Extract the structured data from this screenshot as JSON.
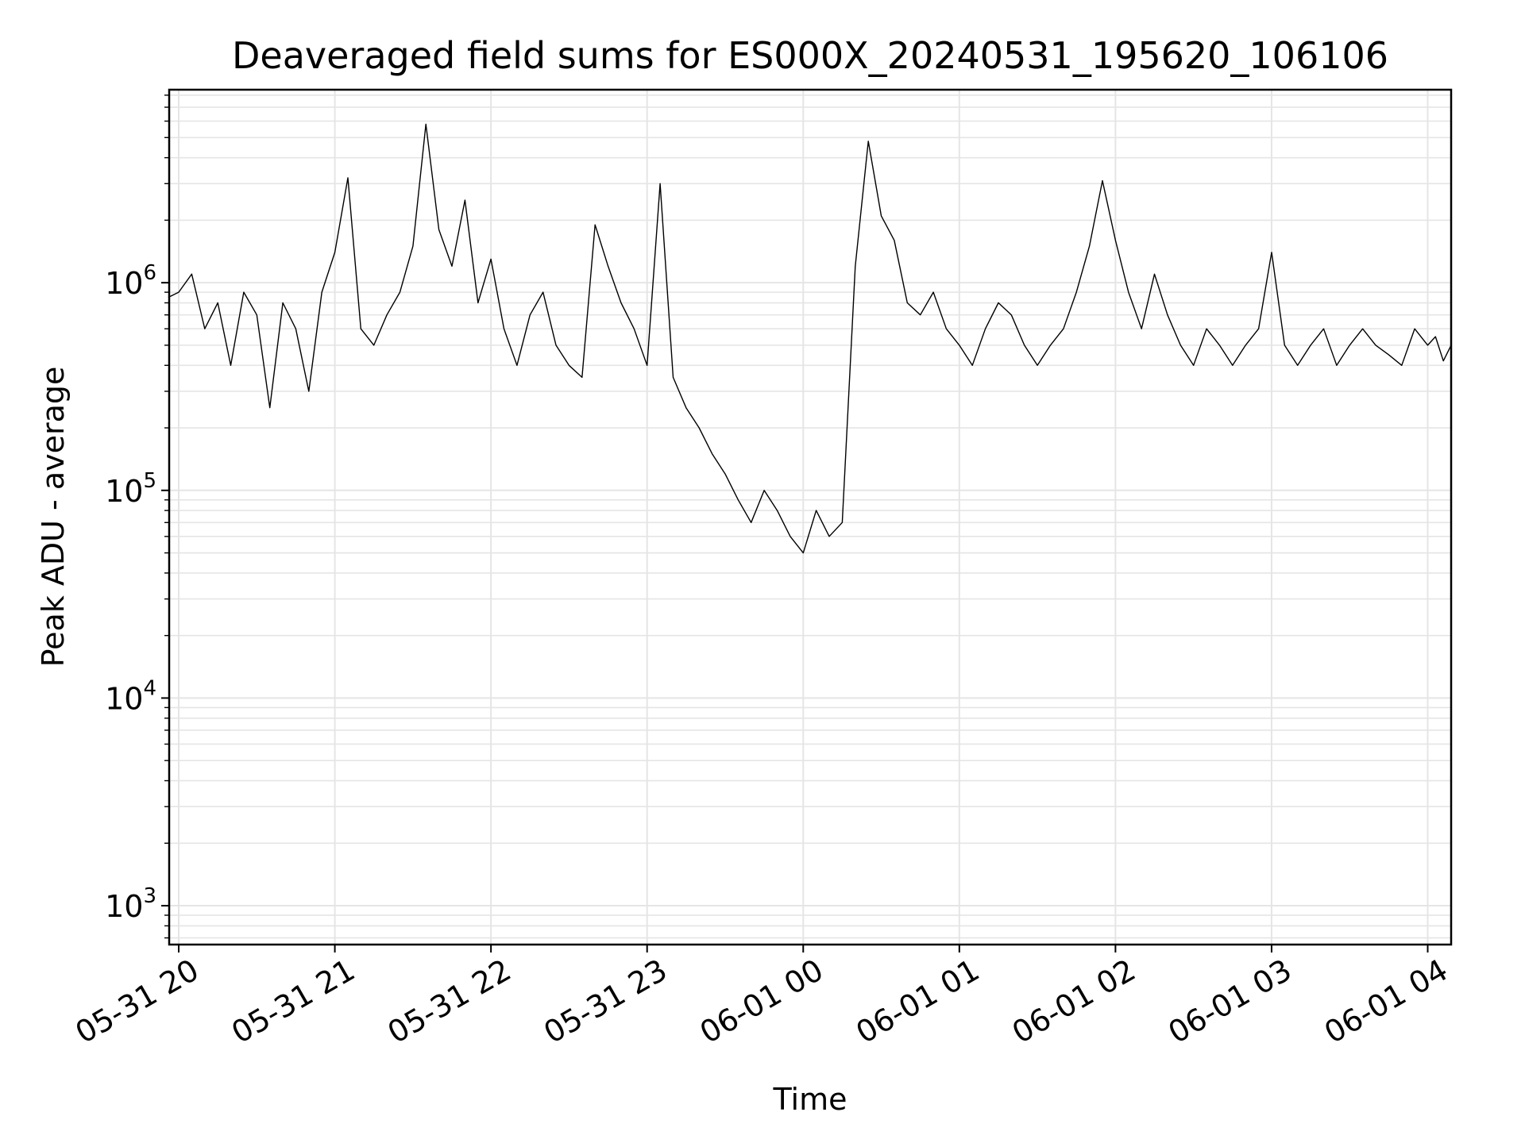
{
  "chart_data": {
    "type": "line",
    "title": "Deaveraged field sums for ES000X_20240531_195620_106106",
    "xlabel": "Time",
    "ylabel": "Peak ADU - average",
    "yscale": "log",
    "ylim": [
      650,
      8500000
    ],
    "xlim": [
      "2024-05-31 19:56:20",
      "2024-06-01 04:09:00"
    ],
    "grid": true,
    "line_color": "#000000",
    "x_ticks": [
      {
        "label": "05-31 20",
        "time": "2024-05-31 20:00"
      },
      {
        "label": "05-31 21",
        "time": "2024-05-31 21:00"
      },
      {
        "label": "05-31 22",
        "time": "2024-05-31 22:00"
      },
      {
        "label": "05-31 23",
        "time": "2024-05-31 23:00"
      },
      {
        "label": "06-01 00",
        "time": "2024-06-01 00:00"
      },
      {
        "label": "06-01 01",
        "time": "2024-06-01 01:00"
      },
      {
        "label": "06-01 02",
        "time": "2024-06-01 02:00"
      },
      {
        "label": "06-01 03",
        "time": "2024-06-01 03:00"
      },
      {
        "label": "06-01 04",
        "time": "2024-06-01 04:00"
      }
    ],
    "y_ticks": [
      {
        "base": "10",
        "exp": "3",
        "value": 1000
      },
      {
        "base": "10",
        "exp": "4",
        "value": 10000
      },
      {
        "base": "10",
        "exp": "5",
        "value": 100000
      },
      {
        "base": "10",
        "exp": "6",
        "value": 1000000
      }
    ],
    "series": [
      {
        "x": [
          "2024-05-31 19:56",
          "2024-05-31 20:00",
          "2024-05-31 20:05",
          "2024-05-31 20:10",
          "2024-05-31 20:15",
          "2024-05-31 20:20",
          "2024-05-31 20:25",
          "2024-05-31 20:30",
          "2024-05-31 20:35",
          "2024-05-31 20:40",
          "2024-05-31 20:45",
          "2024-05-31 20:50",
          "2024-05-31 20:55",
          "2024-05-31 21:00",
          "2024-05-31 21:05",
          "2024-05-31 21:10",
          "2024-05-31 21:15",
          "2024-05-31 21:20",
          "2024-05-31 21:25",
          "2024-05-31 21:30",
          "2024-05-31 21:35",
          "2024-05-31 21:40",
          "2024-05-31 21:45",
          "2024-05-31 21:50",
          "2024-05-31 21:55",
          "2024-05-31 22:00",
          "2024-05-31 22:05",
          "2024-05-31 22:10",
          "2024-05-31 22:15",
          "2024-05-31 22:20",
          "2024-05-31 22:25",
          "2024-05-31 22:30",
          "2024-05-31 22:35",
          "2024-05-31 22:40",
          "2024-05-31 22:45",
          "2024-05-31 22:50",
          "2024-05-31 22:55",
          "2024-05-31 23:00",
          "2024-05-31 23:05",
          "2024-05-31 23:10",
          "2024-05-31 23:15",
          "2024-05-31 23:20",
          "2024-05-31 23:25",
          "2024-05-31 23:30",
          "2024-05-31 23:35",
          "2024-05-31 23:40",
          "2024-05-31 23:45",
          "2024-05-31 23:50",
          "2024-05-31 23:55",
          "2024-06-01 00:00",
          "2024-06-01 00:05",
          "2024-06-01 00:10",
          "2024-06-01 00:15",
          "2024-06-01 00:20",
          "2024-06-01 00:25",
          "2024-06-01 00:30",
          "2024-06-01 00:35",
          "2024-06-01 00:40",
          "2024-06-01 00:45",
          "2024-06-01 00:50",
          "2024-06-01 00:55",
          "2024-06-01 01:00",
          "2024-06-01 01:05",
          "2024-06-01 01:10",
          "2024-06-01 01:15",
          "2024-06-01 01:20",
          "2024-06-01 01:25",
          "2024-06-01 01:30",
          "2024-06-01 01:35",
          "2024-06-01 01:40",
          "2024-06-01 01:45",
          "2024-06-01 01:50",
          "2024-06-01 01:55",
          "2024-06-01 02:00",
          "2024-06-01 02:05",
          "2024-06-01 02:10",
          "2024-06-01 02:15",
          "2024-06-01 02:20",
          "2024-06-01 02:25",
          "2024-06-01 02:30",
          "2024-06-01 02:35",
          "2024-06-01 02:40",
          "2024-06-01 02:45",
          "2024-06-01 02:50",
          "2024-06-01 02:55",
          "2024-06-01 03:00",
          "2024-06-01 03:05",
          "2024-06-01 03:10",
          "2024-06-01 03:15",
          "2024-06-01 03:20",
          "2024-06-01 03:25",
          "2024-06-01 03:30",
          "2024-06-01 03:35",
          "2024-06-01 03:40",
          "2024-06-01 03:45",
          "2024-06-01 03:50",
          "2024-06-01 03:55",
          "2024-06-01 04:00",
          "2024-06-01 04:03",
          "2024-06-01 04:06",
          "2024-06-01 04:09"
        ],
        "values": [
          850000,
          900000,
          1100000,
          600000,
          800000,
          400000,
          900000,
          700000,
          250000,
          800000,
          600000,
          300000,
          900000,
          1400000,
          3200000,
          600000,
          500000,
          700000,
          900000,
          1500000,
          5800000,
          1800000,
          1200000,
          2500000,
          800000,
          1300000,
          600000,
          400000,
          700000,
          900000,
          500000,
          400000,
          350000,
          1900000,
          1200000,
          800000,
          600000,
          400000,
          3000000,
          350000,
          250000,
          200000,
          150000,
          120000,
          90000,
          70000,
          100000,
          80000,
          60000,
          50000,
          80000,
          60000,
          70000,
          1200000,
          4800000,
          2100000,
          1600000,
          800000,
          700000,
          900000,
          600000,
          500000,
          400000,
          600000,
          800000,
          700000,
          500000,
          400000,
          500000,
          600000,
          900000,
          1500000,
          3100000,
          1600000,
          900000,
          600000,
          1100000,
          700000,
          500000,
          400000,
          600000,
          500000,
          400000,
          500000,
          600000,
          1400000,
          500000,
          400000,
          500000,
          600000,
          400000,
          500000,
          600000,
          500000,
          450000,
          400000,
          600000,
          500000,
          550000,
          420000,
          500000
        ],
        "color": "#000000"
      }
    ]
  }
}
